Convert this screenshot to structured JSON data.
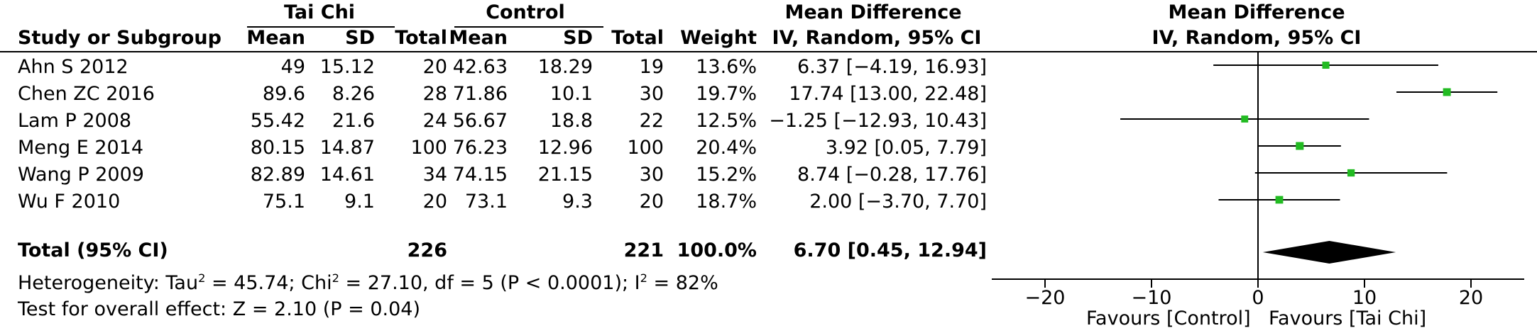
{
  "headers": {
    "group1": "Tai Chi",
    "group2": "Control",
    "md_top": "Mean Difference",
    "md_sub": "IV, Random, 95% CI",
    "plot_top": "Mean Difference",
    "plot_sub": "IV, Random, 95% CI",
    "study": "Study or Subgroup",
    "mean1": "Mean",
    "sd1": "SD",
    "total1": "Total",
    "mean2": "Mean",
    "sd2": "SD",
    "total2": "Total",
    "weight": "Weight"
  },
  "studies": [
    {
      "name": "Ahn S 2012",
      "mean1": "49",
      "sd1": "15.12",
      "total1": "20",
      "mean2": "42.63",
      "sd2": "18.29",
      "total2": "19",
      "weight": "13.6%",
      "ci_text": "6.37 [−4.19, 16.93]"
    },
    {
      "name": "Chen ZC 2016",
      "mean1": "89.6",
      "sd1": "8.26",
      "total1": "28",
      "mean2": "71.86",
      "sd2": "10.1",
      "total2": "30",
      "weight": "19.7%",
      "ci_text": "17.74 [13.00, 22.48]"
    },
    {
      "name": "Lam P 2008",
      "mean1": "55.42",
      "sd1": "21.6",
      "total1": "24",
      "mean2": "56.67",
      "sd2": "18.8",
      "total2": "22",
      "weight": "12.5%",
      "ci_text": "−1.25 [−12.93, 10.43]"
    },
    {
      "name": "Meng E 2014",
      "mean1": "80.15",
      "sd1": "14.87",
      "total1": "100",
      "mean2": "76.23",
      "sd2": "12.96",
      "total2": "100",
      "weight": "20.4%",
      "ci_text": "3.92 [0.05, 7.79]"
    },
    {
      "name": "Wang P 2009",
      "mean1": "82.89",
      "sd1": "14.61",
      "total1": "34",
      "mean2": "74.15",
      "sd2": "21.15",
      "total2": "30",
      "weight": "15.2%",
      "ci_text": "8.74 [−0.28, 17.76]"
    },
    {
      "name": "Wu F 2010",
      "mean1": "75.1",
      "sd1": "9.1",
      "total1": "20",
      "mean2": "73.1",
      "sd2": "9.3",
      "total2": "20",
      "weight": "18.7%",
      "ci_text": "2.00 [−3.70, 7.70]"
    }
  ],
  "total": {
    "name": "Total (95% CI)",
    "total1": "226",
    "total2": "221",
    "weight": "100.0%",
    "ci_text": "6.70 [0.45, 12.94]"
  },
  "heterogeneity": {
    "p1": "Heterogeneity: Tau",
    "s1": "2",
    "p2": " = 45.74; Chi",
    "s2": "2",
    "p3": " = 27.10, df = 5 (P < 0.0001); I",
    "s3": "2",
    "p4": " = 82%"
  },
  "overall_effect": "Test for overall effect: Z = 2.10 (P = 0.04)",
  "favours_left": "Favours [Control]",
  "favours_right": "Favours [Tai Chi]",
  "chart_data": {
    "type": "forest",
    "xlim": [
      -25,
      25
    ],
    "xticks": [
      -20,
      -10,
      0,
      10,
      20
    ],
    "xtick_labels": [
      "−20",
      "−10",
      "0",
      "10",
      "20"
    ],
    "colors": {
      "point": "#22bb22",
      "line": "#000000",
      "diamond": "#000000"
    },
    "points": [
      {
        "label": "Ahn S 2012",
        "md": 6.37,
        "lo": -4.19,
        "hi": 16.93,
        "weight": 13.6
      },
      {
        "label": "Chen ZC 2016",
        "md": 17.74,
        "lo": 13.0,
        "hi": 22.48,
        "weight": 19.7
      },
      {
        "label": "Lam P 2008",
        "md": -1.25,
        "lo": -12.93,
        "hi": 10.43,
        "weight": 12.5
      },
      {
        "label": "Meng E 2014",
        "md": 3.92,
        "lo": 0.05,
        "hi": 7.79,
        "weight": 20.4
      },
      {
        "label": "Wang P 2009",
        "md": 8.74,
        "lo": -0.28,
        "hi": 17.76,
        "weight": 15.2
      },
      {
        "label": "Wu F 2010",
        "md": 2.0,
        "lo": -3.7,
        "hi": 7.7,
        "weight": 18.7
      }
    ],
    "pooled": {
      "md": 6.7,
      "lo": 0.45,
      "hi": 12.94
    }
  }
}
